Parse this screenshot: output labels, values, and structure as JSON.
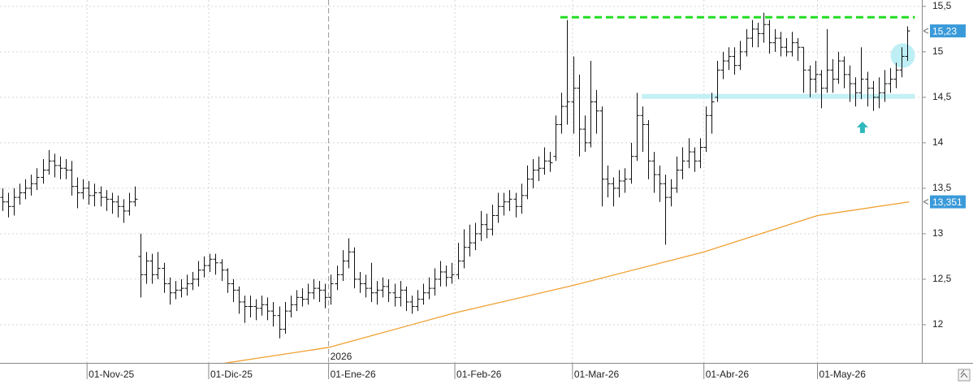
{
  "chart_data": {
    "type": "ohlc",
    "xlim": [
      -0.4,
      159.5
    ],
    "ylim": [
      11.58,
      15.57
    ],
    "grid": true,
    "yticks": [
      12,
      {
        "value": 12.5,
        "label": "12,5"
      },
      13,
      {
        "value": 13.5,
        "label": "13,5"
      },
      14,
      {
        "value": 14.5,
        "label": "14,5"
      },
      15,
      {
        "value": 15.5,
        "label": "15,5"
      }
    ],
    "xticks": [
      {
        "value": 14.7,
        "label": "01-Nov-25"
      },
      {
        "value": 35.8,
        "label": "01-Dic-25"
      },
      {
        "value": 56.6,
        "label": "01-Ene-26"
      },
      {
        "value": 78.5,
        "label": "01-Feb-26"
      },
      {
        "value": 98.9,
        "label": "01-Mar-26"
      },
      {
        "value": 121.7,
        "label": "01-Abr-26"
      },
      {
        "value": 141.4,
        "label": "01-May-26"
      }
    ],
    "year_marker": {
      "x": 56.6,
      "label": "2026"
    },
    "x": [
      0,
      1,
      2,
      3,
      4,
      5,
      6,
      7,
      8,
      9,
      10,
      11,
      12,
      13,
      14,
      15,
      16,
      17,
      18,
      19,
      20,
      21,
      22,
      23,
      24,
      25,
      26,
      27,
      28,
      29,
      30,
      31,
      32,
      33,
      34,
      35,
      36,
      37,
      38,
      39,
      40,
      41,
      42,
      43,
      44,
      45,
      46,
      47,
      48,
      49,
      50,
      51,
      52,
      53,
      54,
      55,
      56,
      57,
      58,
      59,
      60,
      61,
      62,
      63,
      64,
      65,
      66,
      67,
      68,
      69,
      70,
      71,
      72,
      73,
      74,
      75,
      76,
      77,
      78,
      79,
      80,
      81,
      82,
      83,
      84,
      85,
      86,
      87,
      88,
      89,
      90,
      91,
      92,
      93,
      94,
      95,
      96,
      97,
      98,
      99,
      100,
      101,
      102,
      103,
      104,
      105,
      106,
      107,
      108,
      109,
      110,
      111,
      112,
      113,
      114,
      115,
      116,
      117,
      118,
      119,
      120,
      121,
      122,
      123,
      124,
      125,
      126,
      127,
      128,
      129,
      130,
      131,
      132,
      133,
      134,
      135,
      136,
      137,
      138,
      139,
      140,
      141,
      142,
      143,
      144,
      145,
      146,
      147,
      148,
      149,
      150,
      151,
      152,
      153,
      154,
      155,
      156,
      157
    ],
    "color": "#111111",
    "open": [
      13.4,
      13.35,
      13.3,
      13.4,
      13.45,
      13.5,
      13.55,
      13.62,
      13.7,
      13.8,
      13.75,
      13.72,
      13.7,
      13.52,
      13.45,
      13.5,
      13.42,
      13.45,
      13.4,
      13.38,
      13.35,
      13.3,
      13.25,
      13.35,
      12.75,
      12.55,
      12.7,
      12.55,
      12.62,
      12.45,
      12.35,
      12.38,
      12.4,
      12.45,
      12.5,
      12.6,
      12.65,
      12.72,
      12.68,
      12.6,
      12.45,
      12.38,
      12.25,
      12.2,
      12.2,
      12.18,
      12.22,
      12.15,
      12.1,
      11.95,
      12.15,
      12.22,
      12.3,
      12.28,
      12.35,
      12.4,
      12.38,
      12.3,
      12.45,
      12.55,
      12.7,
      12.8,
      12.5,
      12.45,
      12.4,
      12.35,
      12.38,
      12.42,
      12.35,
      12.3,
      12.38,
      12.25,
      12.2,
      12.28,
      12.35,
      12.4,
      12.5,
      12.58,
      12.52,
      12.55,
      12.7,
      12.85,
      12.9,
      13.0,
      13.1,
      13.05,
      13.2,
      13.3,
      13.35,
      13.38,
      13.3,
      13.42,
      13.6,
      13.7,
      13.72,
      13.8,
      13.85,
      14.2,
      14.4,
      14.45,
      14.6,
      14.15,
      14.0,
      14.45,
      14.35,
      13.6,
      13.55,
      13.5,
      13.58,
      13.6,
      13.85,
      14.3,
      14.2,
      13.8,
      13.65,
      13.55,
      13.4,
      13.5,
      13.7,
      13.8,
      13.9,
      13.8,
      13.95,
      14.3,
      14.5,
      14.8,
      14.9,
      14.95,
      14.85,
      15.0,
      15.15,
      15.25,
      15.2,
      15.3,
      15.1,
      15.15,
      15.05,
      15.0,
      15.1,
      15.05,
      14.8,
      14.7,
      14.75,
      14.6,
      14.8,
      14.7,
      14.9,
      14.75,
      14.65,
      14.55,
      14.7,
      14.6,
      14.5,
      14.55,
      14.65,
      14.7,
      14.8,
      14.95
    ],
    "high": [
      13.5,
      13.45,
      13.5,
      13.55,
      13.6,
      13.65,
      13.72,
      13.82,
      13.92,
      13.88,
      13.85,
      13.82,
      13.8,
      13.62,
      13.6,
      13.58,
      13.55,
      13.52,
      13.48,
      13.45,
      13.42,
      13.38,
      13.45,
      13.52,
      13.0,
      12.8,
      12.78,
      12.8,
      12.68,
      12.52,
      12.48,
      12.5,
      12.55,
      12.58,
      12.7,
      12.75,
      12.78,
      12.78,
      12.72,
      12.62,
      12.5,
      12.42,
      12.32,
      12.32,
      12.28,
      12.32,
      12.3,
      12.25,
      12.2,
      12.25,
      12.32,
      12.38,
      12.4,
      12.45,
      12.5,
      12.48,
      12.45,
      12.55,
      12.65,
      12.82,
      12.95,
      12.85,
      12.58,
      12.55,
      12.68,
      12.48,
      12.52,
      12.5,
      12.45,
      12.48,
      12.42,
      12.32,
      12.38,
      12.45,
      12.52,
      12.62,
      12.7,
      12.65,
      12.68,
      12.9,
      13.05,
      13.1,
      13.12,
      13.25,
      13.22,
      13.32,
      13.45,
      13.45,
      13.48,
      13.45,
      13.55,
      13.75,
      13.82,
      13.85,
      13.95,
      13.9,
      14.3,
      14.55,
      15.35,
      14.95,
      14.75,
      14.3,
      14.9,
      14.58,
      14.4,
      13.75,
      13.62,
      13.7,
      13.72,
      14.0,
      14.55,
      14.4,
      14.25,
      13.9,
      13.75,
      13.65,
      13.6,
      13.85,
      13.95,
      14.05,
      13.95,
      14.05,
      14.4,
      14.55,
      14.9,
      15.0,
      15.05,
      15.05,
      15.12,
      15.25,
      15.35,
      15.32,
      15.43,
      15.35,
      15.25,
      15.22,
      15.15,
      15.22,
      15.15,
      15.05,
      14.85,
      14.9,
      14.8,
      15.25,
      14.92,
      15.0,
      14.95,
      14.85,
      14.72,
      15.05,
      14.78,
      14.68,
      14.72,
      14.8,
      14.82,
      14.88,
      15.05,
      15.28
    ],
    "low": [
      13.25,
      13.18,
      13.2,
      13.32,
      13.38,
      13.42,
      13.48,
      13.55,
      13.65,
      13.62,
      13.6,
      13.6,
      13.42,
      13.28,
      13.38,
      13.32,
      13.3,
      13.3,
      13.25,
      13.22,
      13.18,
      13.12,
      13.2,
      13.3,
      12.3,
      12.45,
      12.45,
      12.5,
      12.35,
      12.22,
      12.28,
      12.3,
      12.32,
      12.38,
      12.42,
      12.52,
      12.58,
      12.55,
      12.48,
      12.35,
      12.25,
      12.12,
      12.02,
      12.08,
      12.05,
      12.1,
      12.05,
      11.98,
      11.85,
      11.9,
      12.08,
      12.15,
      12.2,
      12.22,
      12.28,
      12.25,
      12.18,
      12.22,
      12.38,
      12.48,
      12.62,
      12.4,
      12.35,
      12.3,
      12.25,
      12.22,
      12.3,
      12.25,
      12.2,
      12.2,
      12.15,
      12.12,
      12.15,
      12.22,
      12.28,
      12.32,
      12.42,
      12.42,
      12.45,
      12.5,
      12.62,
      12.75,
      12.82,
      12.92,
      12.95,
      12.98,
      13.12,
      13.2,
      13.25,
      13.18,
      13.22,
      13.38,
      13.5,
      13.58,
      13.65,
      13.68,
      13.8,
      14.1,
      14.2,
      14.1,
      13.85,
      13.9,
      13.95,
      14.1,
      13.3,
      13.4,
      13.3,
      13.4,
      13.45,
      13.55,
      13.8,
      13.9,
      13.6,
      13.45,
      13.35,
      12.88,
      13.3,
      13.45,
      13.6,
      13.72,
      13.68,
      13.72,
      13.9,
      14.1,
      14.45,
      14.7,
      14.8,
      14.75,
      14.8,
      14.95,
      15.05,
      15.05,
      15.1,
      14.98,
      15.0,
      14.95,
      14.95,
      14.95,
      14.9,
      14.55,
      14.5,
      14.55,
      14.38,
      14.55,
      14.55,
      14.65,
      14.6,
      14.45,
      14.4,
      14.48,
      14.4,
      14.35,
      14.38,
      14.45,
      14.55,
      14.6,
      14.72,
      14.9
    ],
    "close": [
      13.35,
      13.3,
      13.4,
      13.45,
      13.5,
      13.55,
      13.62,
      13.7,
      13.8,
      13.75,
      13.72,
      13.7,
      13.52,
      13.45,
      13.5,
      13.42,
      13.45,
      13.4,
      13.38,
      13.35,
      13.3,
      13.25,
      13.35,
      13.38,
      12.55,
      12.7,
      12.55,
      12.62,
      12.45,
      12.35,
      12.38,
      12.4,
      12.45,
      12.5,
      12.6,
      12.65,
      12.72,
      12.68,
      12.6,
      12.45,
      12.38,
      12.25,
      12.2,
      12.2,
      12.18,
      12.22,
      12.15,
      12.1,
      11.95,
      12.15,
      12.22,
      12.3,
      12.28,
      12.35,
      12.4,
      12.38,
      12.3,
      12.45,
      12.55,
      12.7,
      12.8,
      12.5,
      12.45,
      12.4,
      12.35,
      12.38,
      12.42,
      12.35,
      12.3,
      12.38,
      12.25,
      12.2,
      12.28,
      12.35,
      12.4,
      12.5,
      12.58,
      12.52,
      12.55,
      12.7,
      12.85,
      12.9,
      13.0,
      13.1,
      13.05,
      13.2,
      13.3,
      13.35,
      13.38,
      13.3,
      13.42,
      13.6,
      13.7,
      13.72,
      13.8,
      13.78,
      14.2,
      14.4,
      14.45,
      14.6,
      14.15,
      14.0,
      14.45,
      14.35,
      13.6,
      13.55,
      13.5,
      13.58,
      13.6,
      13.85,
      14.3,
      14.2,
      13.8,
      13.65,
      13.55,
      13.4,
      13.5,
      13.7,
      13.8,
      13.9,
      13.8,
      13.95,
      14.3,
      14.45,
      14.8,
      14.9,
      14.95,
      14.85,
      15.0,
      15.15,
      15.25,
      15.2,
      15.3,
      15.1,
      15.15,
      15.05,
      15.0,
      15.1,
      15.05,
      14.8,
      14.7,
      14.75,
      14.6,
      14.8,
      14.7,
      14.9,
      14.75,
      14.65,
      14.55,
      14.7,
      14.6,
      14.5,
      14.55,
      14.65,
      14.7,
      14.8,
      14.95,
      15.23
    ],
    "sma": {
      "color": "#f0a030",
      "x": [
        35.8,
        56.6,
        78.5,
        98.9,
        121.7,
        141.4,
        157.3
      ],
      "values": [
        11.55,
        11.75,
        12.13,
        12.43,
        12.8,
        13.2,
        13.351
      ]
    },
    "resistance": {
      "value": 15.38,
      "x": [
        96.8,
        158.3
      ],
      "color": "#22dd22"
    },
    "support": {
      "value": 14.51,
      "x": [
        110.9,
        158.3
      ],
      "color": "#c4f0f5"
    },
    "circle": {
      "x": 156.2,
      "y": 14.96,
      "color": "#bdeff5"
    },
    "arrow": {
      "x": 149.2,
      "y": 14.17,
      "color": "#2fb8bd"
    },
    "price_tags": [
      {
        "value": 15.23,
        "label": "15,23",
        "color": "#3a9ad9"
      },
      {
        "value": 13.351,
        "label": "13,351",
        "color": "#3a9ad9"
      }
    ]
  }
}
